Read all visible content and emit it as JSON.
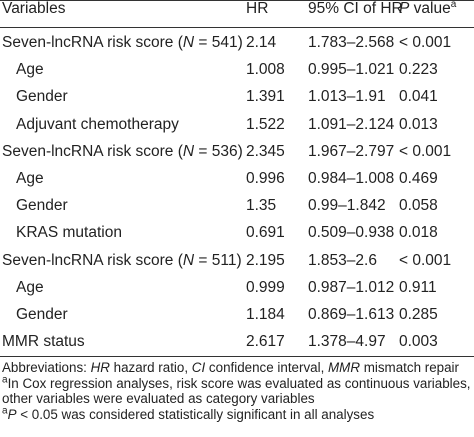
{
  "table": {
    "headers": {
      "variables": "Variables",
      "hr": "HR",
      "ci": "95% CI of HR",
      "p_italic": "P",
      "p_rest": " value",
      "p_sup": "a"
    },
    "rows": [
      {
        "var_pre": "Seven-lncRNA risk score (",
        "n_label": "N",
        "n_value": " = 541)",
        "hr": "2.14",
        "ci": "1.783–2.568",
        "p": "< 0.001"
      },
      {
        "var": "Age",
        "hr": "1.008",
        "ci": "0.995–1.021",
        "p": "0.223"
      },
      {
        "var": "Gender",
        "hr": "1.391",
        "ci": "1.013–1.91",
        "p": "0.041"
      },
      {
        "var": "Adjuvant chemotherapy",
        "hr": "1.522",
        "ci": "1.091–2.124",
        "p": "0.013"
      },
      {
        "var_pre": "Seven-lncRNA risk score (",
        "n_label": "N",
        "n_value": " = 536)",
        "hr": "2.345",
        "ci": "1.967–2.797",
        "p": "< 0.001"
      },
      {
        "var": "Age",
        "hr": "0.996",
        "ci": "0.984–1.008",
        "p": "0.469"
      },
      {
        "var": "Gender",
        "hr": "1.35",
        "ci": "0.99–1.842",
        "p": "0.058"
      },
      {
        "var": "KRAS mutation",
        "hr": "0.691",
        "ci": "0.509–0.938",
        "p": "0.018"
      },
      {
        "var_pre": "Seven-lncRNA risk score (",
        "n_label": "N",
        "n_value": " = 511)",
        "hr": "2.195",
        "ci": "1.853–2.6",
        "p": "< 0.001"
      },
      {
        "var": "Age",
        "hr": "0.999",
        "ci": "0.987–1.012",
        "p": "0.911"
      },
      {
        "var": "Gender",
        "hr": "1.184",
        "ci": "0.869–1.613",
        "p": "0.285"
      },
      {
        "var": "MMR status",
        "hr": "2.617",
        "ci": "1.378–4.97",
        "p": "0.003"
      }
    ]
  },
  "footnotes": {
    "abbr_prefix": "Abbreviations: ",
    "abbr_hr": "HR",
    "abbr_hr_text": " hazard ratio, ",
    "abbr_ci": "CI",
    "abbr_ci_text": " confidence interval, ",
    "abbr_mmr": "MMR",
    "abbr_mmr_text": " mismatch repair",
    "note_a_label": "a",
    "note_a_line1": "In Cox regression analyses, risk score was evaluated as continuous variables, all",
    "note_a_line2": "other variables were evaluated as category variables",
    "note_b_label": "a",
    "note_b_p": "P",
    "note_b_text": " < 0.05 was considered statistically significant in all analyses"
  }
}
